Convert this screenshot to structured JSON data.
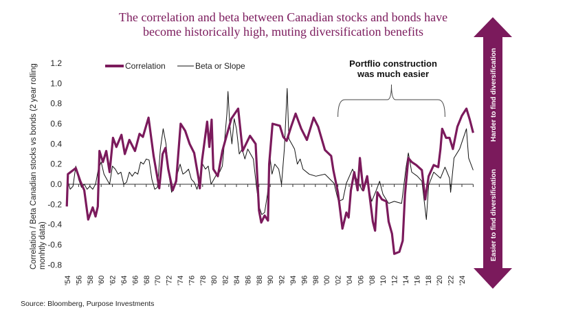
{
  "title_lines": [
    "The correlation and beta between Canadian stocks and bonds have",
    "become historically high, muting diversification benefits"
  ],
  "source": "Source: Bloomberg, Purpose Investments",
  "arrow": {
    "up_label": "Harder to find diversification",
    "down_label": "Easier to find diversification",
    "color": "#7b1a5c"
  },
  "annotation": {
    "lines": [
      "Portflio construction",
      "was much easier"
    ],
    "range": [
      2002,
      2021
    ]
  },
  "chart_data": {
    "type": "line",
    "title": "The correlation and beta between Canadian stocks and bonds have become historically high, muting diversification benefits",
    "ylabel": "Correlation / Beta Canadian stocks vs bonds (2 year rolling monhtly data)",
    "xlabel": "",
    "ylim": [
      -0.8,
      1.2
    ],
    "xlim": [
      1954,
      2026
    ],
    "y_ticks": [
      "1.2",
      "1.0",
      "0.8",
      "0.6",
      "0.4",
      "0.2",
      "0.0",
      "-0.2",
      "-0.4",
      "-0.6",
      "-0.8"
    ],
    "x_tick_labels": [
      "'54",
      "'56",
      "'58",
      "'60",
      "'62",
      "'64",
      "'66",
      "'68",
      "'70",
      "'72",
      "'74",
      "'76",
      "'78",
      "'80",
      "'82",
      "'84",
      "'86",
      "'88",
      "'90",
      "'92",
      "'94",
      "'96",
      "'98",
      "'00",
      "'02",
      "'04",
      "'06",
      "'08",
      "'10",
      "'12",
      "'14",
      "'16",
      "'18",
      "'20",
      "'22",
      "'24"
    ],
    "grid": false,
    "legend": "top-left",
    "series": [
      {
        "name": "Correlation",
        "color": "#7b1a5c",
        "points": [
          [
            1953.9,
            -0.22
          ],
          [
            1954.1,
            0.1
          ],
          [
            1955.5,
            0.16
          ],
          [
            1956.3,
            0.03
          ],
          [
            1957,
            -0.06
          ],
          [
            1957.7,
            -0.35
          ],
          [
            1958.5,
            -0.23
          ],
          [
            1959,
            -0.32
          ],
          [
            1959.4,
            -0.22
          ],
          [
            1959.7,
            0.33
          ],
          [
            1960.3,
            0.22
          ],
          [
            1960.9,
            0.33
          ],
          [
            1961.5,
            0.12
          ],
          [
            1962.1,
            0.46
          ],
          [
            1962.7,
            0.37
          ],
          [
            1963.6,
            0.49
          ],
          [
            1964.2,
            0.3
          ],
          [
            1965,
            0.44
          ],
          [
            1966,
            0.33
          ],
          [
            1966.8,
            0.5
          ],
          [
            1967.4,
            0.47
          ],
          [
            1968.4,
            0.66
          ],
          [
            1969.3,
            0.28
          ],
          [
            1970.3,
            -0.04
          ],
          [
            1970.9,
            0.3
          ],
          [
            1971.4,
            0.36
          ],
          [
            1971.9,
            0.15
          ],
          [
            1972.7,
            -0.06
          ],
          [
            1973.3,
            0.03
          ],
          [
            1974.1,
            0.6
          ],
          [
            1974.9,
            0.53
          ],
          [
            1975.7,
            0.4
          ],
          [
            1976.5,
            0.31
          ],
          [
            1977.3,
            0.05
          ],
          [
            1977.5,
            -0.04
          ],
          [
            1977.9,
            0.24
          ],
          [
            1978.8,
            0.62
          ],
          [
            1979.2,
            0.37
          ],
          [
            1979.6,
            0.64
          ],
          [
            1979.9,
            0.15
          ],
          [
            1980.7,
            0.08
          ],
          [
            1981.5,
            0.33
          ],
          [
            1983.1,
            0.65
          ],
          [
            1984.3,
            0.75
          ],
          [
            1985.1,
            0.33
          ],
          [
            1986.4,
            0.48
          ],
          [
            1987.4,
            0.4
          ],
          [
            1988,
            -0.26
          ],
          [
            1988.4,
            -0.38
          ],
          [
            1989,
            -0.31
          ],
          [
            1989.6,
            -0.36
          ],
          [
            1989.8,
            0.2
          ],
          [
            1990.4,
            0.6
          ],
          [
            1991.7,
            0.58
          ],
          [
            1992.3,
            0.47
          ],
          [
            1992.9,
            0.43
          ],
          [
            1993.7,
            0.57
          ],
          [
            1994.5,
            0.7
          ],
          [
            1995.5,
            0.55
          ],
          [
            1996.5,
            0.44
          ],
          [
            1997.7,
            0.66
          ],
          [
            1998.5,
            0.57
          ],
          [
            1999.7,
            0.34
          ],
          [
            2000.8,
            0.28
          ],
          [
            2001.2,
            0.14
          ],
          [
            2002,
            -0.08
          ],
          [
            2002.8,
            -0.44
          ],
          [
            2003.5,
            -0.28
          ],
          [
            2003.9,
            -0.33
          ],
          [
            2004.3,
            -0.06
          ],
          [
            2004.9,
            0.12
          ],
          [
            2005.5,
            -0.06
          ],
          [
            2005.9,
            0.26
          ],
          [
            2006.5,
            -0.06
          ],
          [
            2007.2,
            0.08
          ],
          [
            2008.2,
            -0.37
          ],
          [
            2008.6,
            -0.46
          ],
          [
            2009,
            -0.08
          ],
          [
            2009.8,
            -0.15
          ],
          [
            2010.6,
            -0.17
          ],
          [
            2011,
            -0.37
          ],
          [
            2011.6,
            -0.49
          ],
          [
            2012,
            -0.69
          ],
          [
            2012.9,
            -0.67
          ],
          [
            2013.5,
            -0.56
          ],
          [
            2013.9,
            -0.1
          ],
          [
            2014.5,
            0.26
          ],
          [
            2015.1,
            0.22
          ],
          [
            2015.9,
            0.19
          ],
          [
            2016.9,
            0.14
          ],
          [
            2017.5,
            -0.15
          ],
          [
            2018.1,
            0.08
          ],
          [
            2019,
            0.19
          ],
          [
            2019.8,
            0.17
          ],
          [
            2020.2,
            0.35
          ],
          [
            2020.5,
            0.55
          ],
          [
            2021.2,
            0.46
          ],
          [
            2021.8,
            0.46
          ],
          [
            2022.4,
            0.35
          ],
          [
            2023.2,
            0.57
          ],
          [
            2024,
            0.68
          ],
          [
            2024.8,
            0.75
          ],
          [
            2025.4,
            0.64
          ],
          [
            2026,
            0.51
          ]
        ]
      },
      {
        "name": "Beta or Slope",
        "color": "#111111",
        "points": [
          [
            1954,
            0.05
          ],
          [
            1954.5,
            -0.05
          ],
          [
            1955,
            -0.02
          ],
          [
            1955.5,
            0.18
          ],
          [
            1956,
            0.05
          ],
          [
            1956.5,
            -0.03
          ],
          [
            1957,
            0.0
          ],
          [
            1957.5,
            -0.05
          ],
          [
            1958,
            -0.02
          ],
          [
            1958.5,
            -0.05
          ],
          [
            1959,
            0.0
          ],
          [
            1959.5,
            0.15
          ],
          [
            1960,
            0.22
          ],
          [
            1960.5,
            0.1
          ],
          [
            1961,
            0.05
          ],
          [
            1961.5,
            0.0
          ],
          [
            1962,
            0.18
          ],
          [
            1962.5,
            0.15
          ],
          [
            1963,
            0.1
          ],
          [
            1963.5,
            0.12
          ],
          [
            1964,
            0.0
          ],
          [
            1964.5,
            0.02
          ],
          [
            1965,
            0.12
          ],
          [
            1965.5,
            0.08
          ],
          [
            1966,
            0.12
          ],
          [
            1966.5,
            0.1
          ],
          [
            1967,
            0.22
          ],
          [
            1967.5,
            0.2
          ],
          [
            1968,
            0.25
          ],
          [
            1968.5,
            0.24
          ],
          [
            1969,
            0.05
          ],
          [
            1969.5,
            -0.05
          ],
          [
            1970,
            -0.03
          ],
          [
            1970.5,
            0.35
          ],
          [
            1971,
            0.55
          ],
          [
            1971.5,
            0.4
          ],
          [
            1972,
            0.1
          ],
          [
            1972.5,
            -0.08
          ],
          [
            1973,
            0.0
          ],
          [
            1973.5,
            0.1
          ],
          [
            1974,
            0.2
          ],
          [
            1974.5,
            0.1
          ],
          [
            1975,
            0.12
          ],
          [
            1975.5,
            0.15
          ],
          [
            1976,
            0.05
          ],
          [
            1976.5,
            0.02
          ],
          [
            1977,
            -0.05
          ],
          [
            1977.5,
            0.05
          ],
          [
            1978,
            0.2
          ],
          [
            1978.5,
            0.15
          ],
          [
            1979,
            0.18
          ],
          [
            1979.5,
            0.0
          ],
          [
            1980,
            0.05
          ],
          [
            1980.5,
            0.1
          ],
          [
            1981,
            0.12
          ],
          [
            1981.5,
            0.18
          ],
          [
            1982,
            0.5
          ],
          [
            1982.3,
            0.7
          ],
          [
            1982.5,
            0.92
          ],
          [
            1982.8,
            0.6
          ],
          [
            1983.2,
            0.4
          ],
          [
            1983.6,
            0.65
          ],
          [
            1984,
            0.55
          ],
          [
            1984.5,
            0.3
          ],
          [
            1985,
            0.35
          ],
          [
            1985.5,
            0.25
          ],
          [
            1986,
            0.35
          ],
          [
            1986.5,
            0.3
          ],
          [
            1987,
            0.25
          ],
          [
            1987.5,
            0.0
          ],
          [
            1988,
            -0.22
          ],
          [
            1988.5,
            -0.3
          ],
          [
            1989,
            -0.28
          ],
          [
            1989.5,
            -0.1
          ],
          [
            1990,
            0.25
          ],
          [
            1990.3,
            0.1
          ],
          [
            1990.8,
            0.2
          ],
          [
            1991.5,
            0.15
          ],
          [
            1992,
            0.0
          ],
          [
            1992.5,
            0.35
          ],
          [
            1993,
            0.95
          ],
          [
            1993.3,
            0.45
          ],
          [
            1993.8,
            0.4
          ],
          [
            1994.3,
            0.35
          ],
          [
            1994.8,
            0.2
          ],
          [
            1995.3,
            0.25
          ],
          [
            1995.8,
            0.15
          ],
          [
            1996.9,
            0.1
          ],
          [
            1998.1,
            0.08
          ],
          [
            1999.7,
            0.1
          ],
          [
            2001.3,
            0.01
          ],
          [
            2002.1,
            -0.17
          ],
          [
            2002.9,
            -0.15
          ],
          [
            2003.5,
            0.01
          ],
          [
            2004.6,
            0.15
          ],
          [
            2005.5,
            0.03
          ],
          [
            2006.3,
            -0.06
          ],
          [
            2007.2,
            0.03
          ],
          [
            2008,
            -0.17
          ],
          [
            2008.8,
            -0.06
          ],
          [
            2009.4,
            0.03
          ],
          [
            2010,
            -0.1
          ],
          [
            2011,
            -0.19
          ],
          [
            2012,
            -0.17
          ],
          [
            2013.3,
            -0.19
          ],
          [
            2014.1,
            0.17
          ],
          [
            2014.5,
            0.31
          ],
          [
            2015.1,
            0.12
          ],
          [
            2016.1,
            0.08
          ],
          [
            2016.9,
            0.03
          ],
          [
            2017.7,
            -0.35
          ],
          [
            2018.1,
            -0.01
          ],
          [
            2019,
            0.12
          ],
          [
            2020.2,
            0.06
          ],
          [
            2021,
            0.17
          ],
          [
            2021.8,
            0.06
          ],
          [
            2022,
            -0.08
          ],
          [
            2022.6,
            0.26
          ],
          [
            2023.6,
            0.35
          ],
          [
            2024.8,
            0.55
          ],
          [
            2025.2,
            0.26
          ],
          [
            2026,
            0.14
          ]
        ]
      }
    ]
  }
}
